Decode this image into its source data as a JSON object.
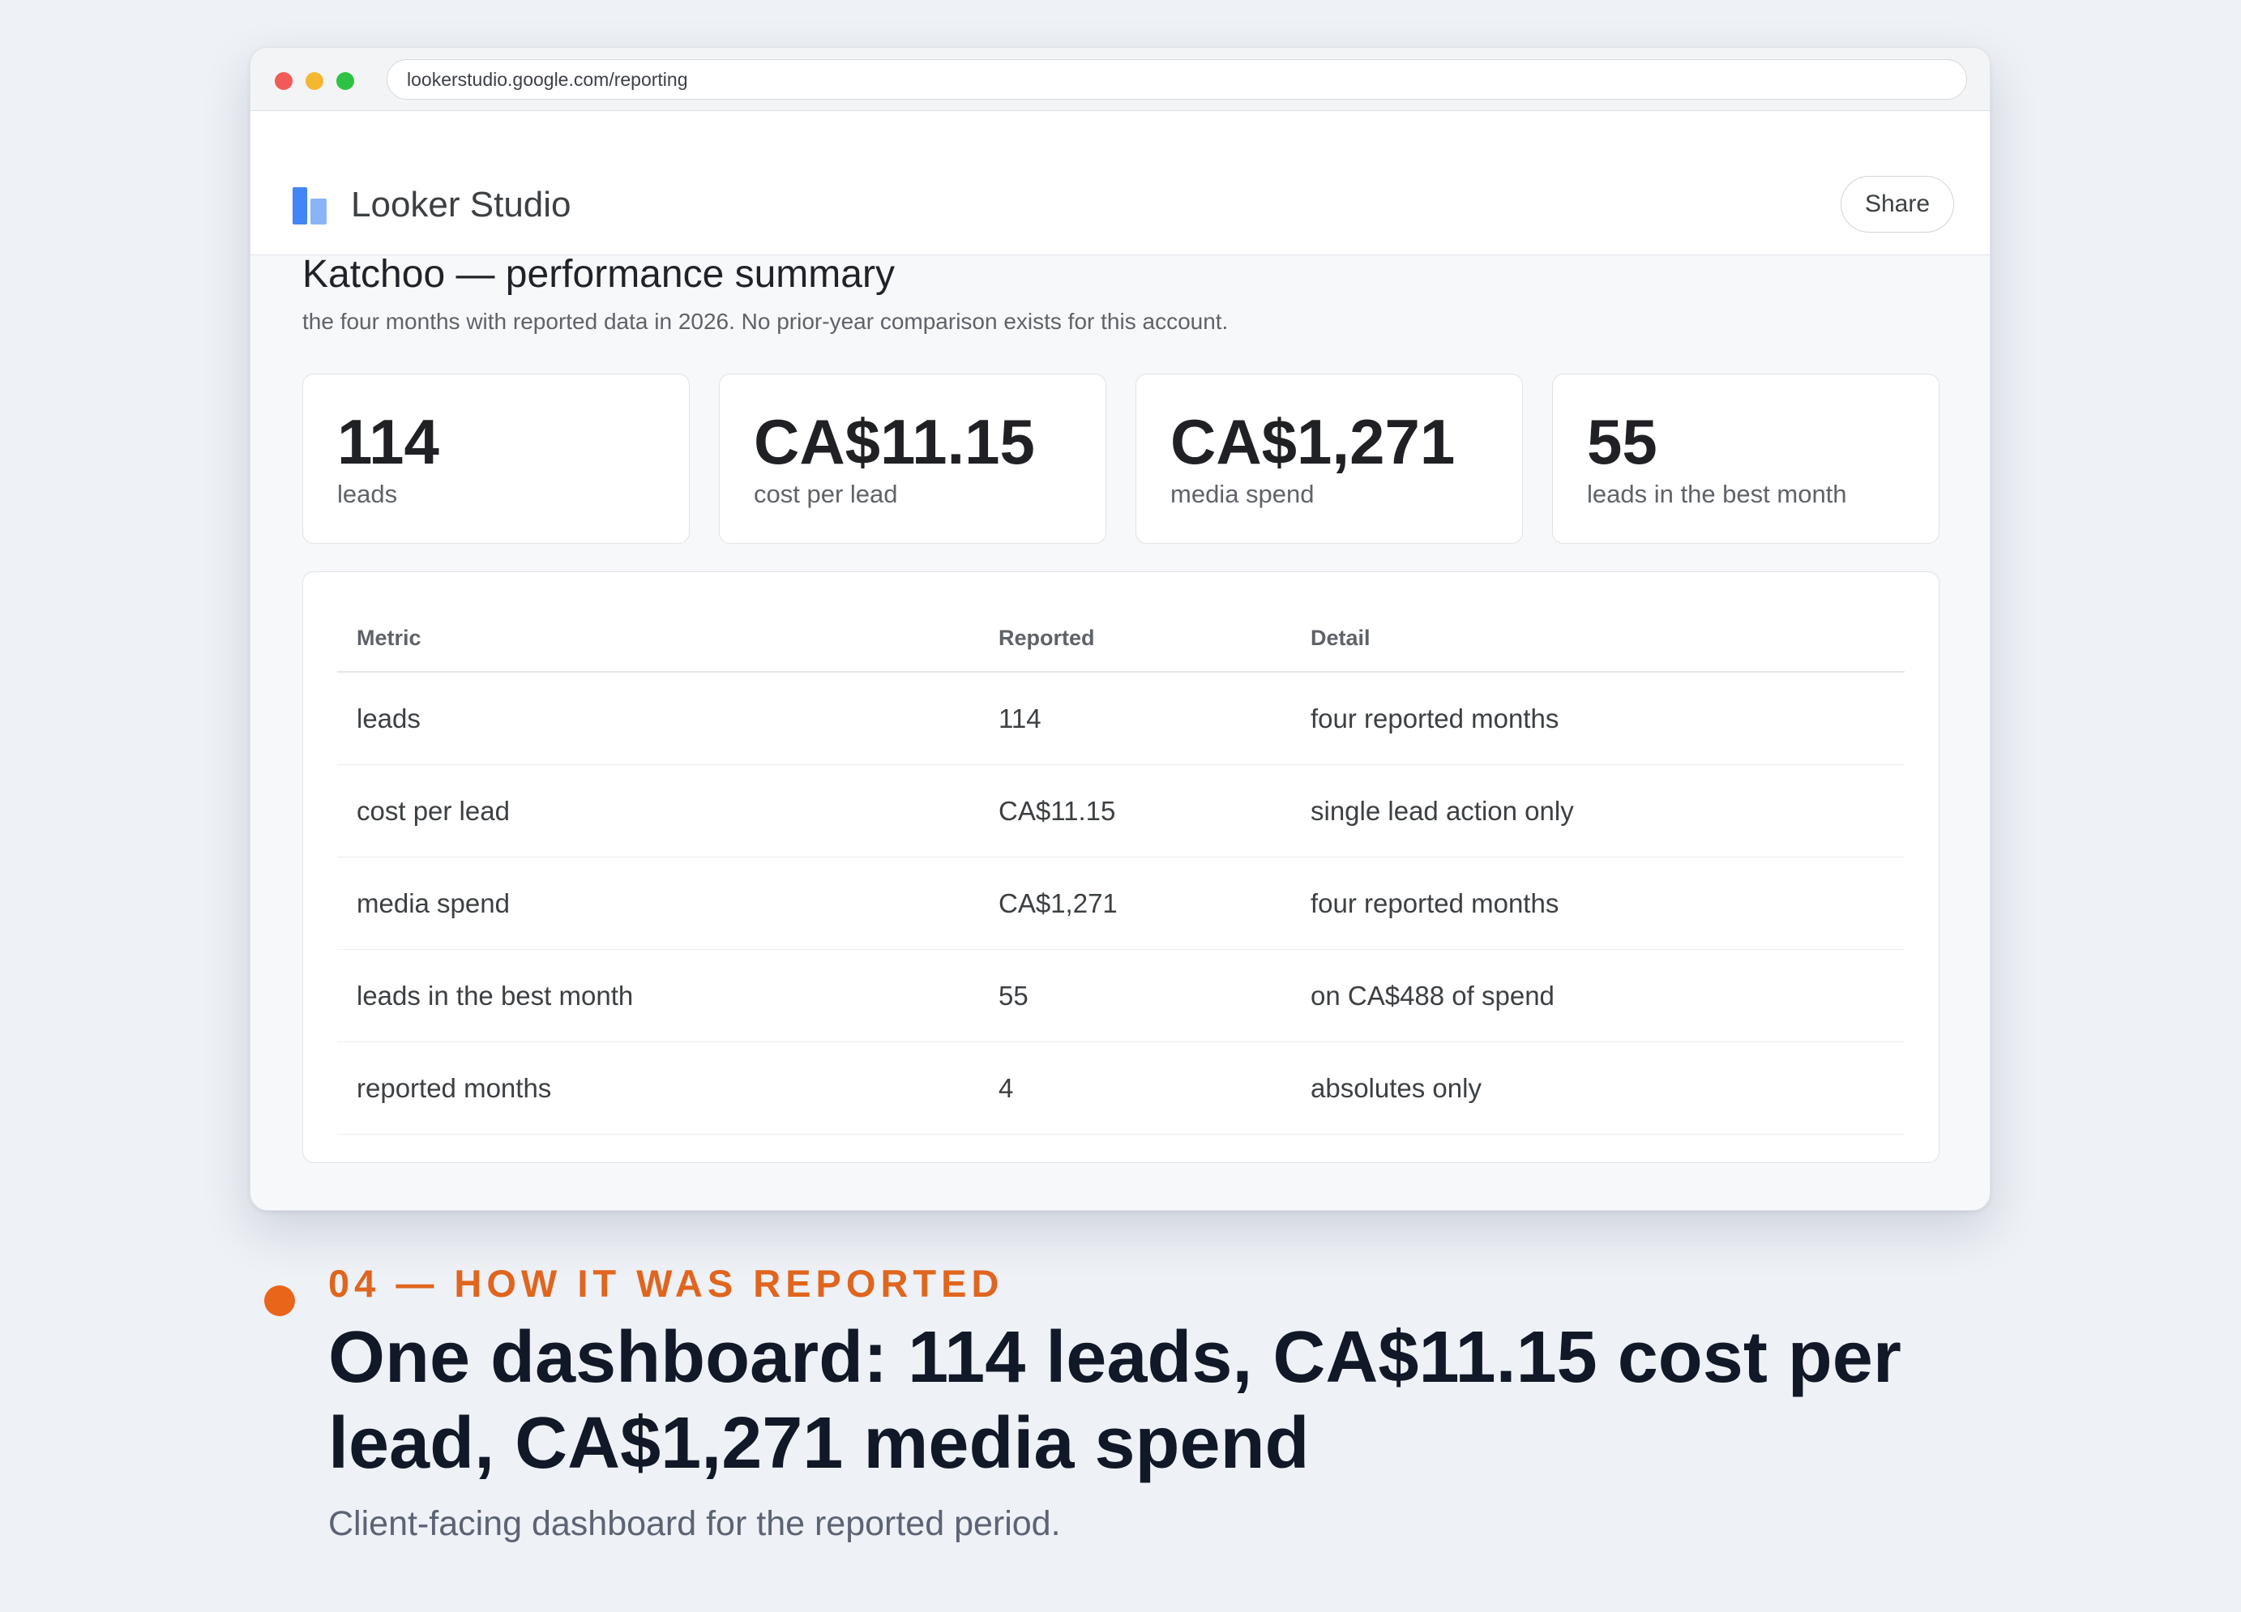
{
  "browser": {
    "url": "lookerstudio.google.com/reporting"
  },
  "app": {
    "name": "Looker Studio",
    "share_label": "Share"
  },
  "report": {
    "title": "Katchoo — performance summary",
    "subtitle": "the four months with reported data in 2026. No prior-year comparison exists for this account."
  },
  "kpis": [
    {
      "value": "114",
      "label": "leads"
    },
    {
      "value": "CA$11.15",
      "label": "cost per lead"
    },
    {
      "value": "CA$1,271",
      "label": "media spend"
    },
    {
      "value": "55",
      "label": "leads in the best month"
    }
  ],
  "table": {
    "headers": [
      "Metric",
      "Reported",
      "Detail"
    ],
    "rows": [
      [
        "leads",
        "114",
        "four reported months"
      ],
      [
        "cost per lead",
        "CA$11.15",
        "single lead action only"
      ],
      [
        "media spend",
        "CA$1,271",
        "four reported months"
      ],
      [
        "leads in the best month",
        "55",
        "on CA$488 of spend"
      ],
      [
        "reported months",
        "4",
        "absolutes only"
      ]
    ]
  },
  "caption": {
    "eyebrow": "04 — HOW IT WAS REPORTED",
    "headline": "One dashboard: 114 leads, CA$11.15 cost per lead, CA$1,271 media spend",
    "subline": "Client-facing dashboard for the reported period."
  },
  "colors": {
    "accent": "#e0651e",
    "looker_blue": "#4285f4",
    "headline": "#111827"
  }
}
